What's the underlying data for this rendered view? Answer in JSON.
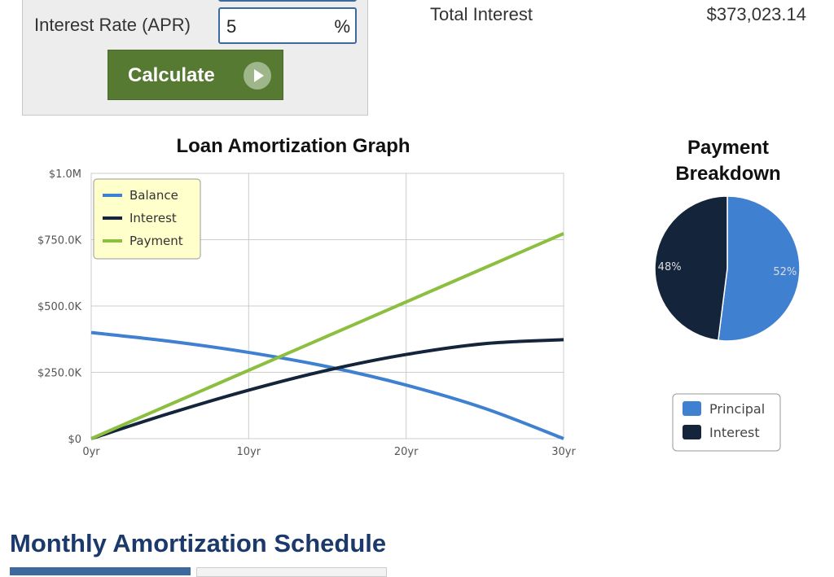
{
  "form": {
    "rate_label": "Interest Rate (APR)",
    "rate_value": "5",
    "rate_unit": "%",
    "calculate_label": "Calculate"
  },
  "summary": {
    "total_interest_label": "Total Interest",
    "total_interest_value": "$373,023.14"
  },
  "colors": {
    "balance": "#3f80d0",
    "interest": "#14243a",
    "payment": "#8cbf3f",
    "principal": "#3f80d0",
    "button": "#577a33",
    "heading": "#1b3a6b"
  },
  "chart_data": [
    {
      "type": "line",
      "title": "Loan Amortization Graph",
      "x": [
        0,
        5,
        10,
        15,
        20,
        25,
        30
      ],
      "x_ticks": [
        {
          "v": 0,
          "label": "0yr"
        },
        {
          "v": 10,
          "label": "10yr"
        },
        {
          "v": 20,
          "label": "20yr"
        },
        {
          "v": 30,
          "label": "30yr"
        }
      ],
      "y_ticks": [
        {
          "v": 0,
          "label": "$0"
        },
        {
          "v": 250000,
          "label": "$250.0K"
        },
        {
          "v": 500000,
          "label": "$500.0K"
        },
        {
          "v": 750000,
          "label": "$750.0K"
        },
        {
          "v": 1000000,
          "label": "$1.0M"
        }
      ],
      "xlim": [
        0,
        30
      ],
      "ylim": [
        0,
        1000000
      ],
      "grid": true,
      "legend_position": "top-left",
      "series": [
        {
          "name": "Balance",
          "color": "#3f80d0",
          "values": [
            400000,
            367000,
            325000,
            271500,
            202000,
            114000,
            0
          ]
        },
        {
          "name": "Interest",
          "color": "#14243a",
          "values": [
            0,
            95800,
            182700,
            258000,
            317300,
            358200,
            373023
          ]
        },
        {
          "name": "Payment",
          "color": "#8cbf3f",
          "values": [
            0,
            128800,
            257700,
            386500,
            515300,
            644200,
            773023
          ]
        }
      ]
    },
    {
      "type": "pie",
      "title": "Payment Breakdown",
      "slices": [
        {
          "name": "Principal",
          "value": 52,
          "label": "52%",
          "color": "#3f80d0"
        },
        {
          "name": "Interest",
          "value": 48,
          "label": "48%",
          "color": "#14243a"
        }
      ]
    }
  ],
  "schedule": {
    "title": "Monthly Amortization Schedule"
  }
}
